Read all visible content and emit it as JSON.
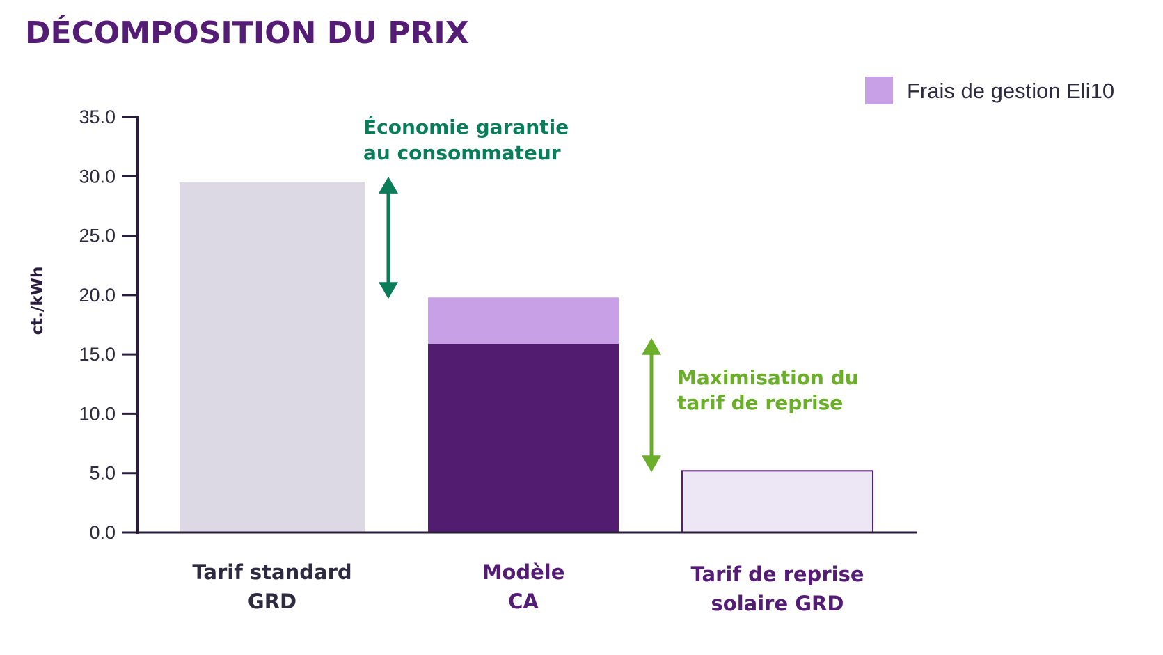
{
  "chart_data": {
    "type": "bar",
    "title": "DÉCOMPOSITION DU PRIX",
    "ylabel": "ct./kWh",
    "xlabel": "",
    "ylim": [
      0,
      35
    ],
    "yticks": [
      "0.0",
      "5.0",
      "10.0",
      "15.0",
      "20.0",
      "25.0",
      "30.0",
      "35.0"
    ],
    "grid": false,
    "legend_position": "top-right",
    "categories": [
      {
        "lines": [
          "Tarif standard",
          "GRD"
        ],
        "color": "#2e2a40"
      },
      {
        "lines": [
          "Modèle",
          "CA"
        ],
        "color": "#541c74"
      },
      {
        "lines": [
          "Tarif de reprise",
          "solaire GRD"
        ],
        "color": "#541c74"
      }
    ],
    "bars": [
      {
        "category_index": 0,
        "segments": [
          {
            "value": 29.5,
            "color": "#dcd8e4"
          }
        ]
      },
      {
        "category_index": 1,
        "segments": [
          {
            "value": 15.9,
            "color": "#521c70"
          },
          {
            "value": 3.9,
            "color": "#c8a0e6",
            "series": "Frais de gestion Eli10"
          }
        ]
      },
      {
        "category_index": 2,
        "segments": [
          {
            "value": 5.2,
            "color": "#ede6f4",
            "stroke": "#541c74"
          }
        ]
      }
    ],
    "legend": [
      {
        "label": "Frais de gestion Eli10",
        "color": "#c8a0e6"
      }
    ],
    "annotations": [
      {
        "lines": [
          "Économie garantie",
          "au consommateur"
        ],
        "color": "#0a7c58",
        "y_from": 29.5,
        "y_to": 19.8
      },
      {
        "lines": [
          "Maximisation du",
          "tarif de reprise"
        ],
        "color": "#6aae2a",
        "y_from": 15.9,
        "y_to": 5.2
      }
    ],
    "colors": {
      "title": "#541c74",
      "axis": "#2a1d3c",
      "text": "#2e2a40"
    }
  }
}
